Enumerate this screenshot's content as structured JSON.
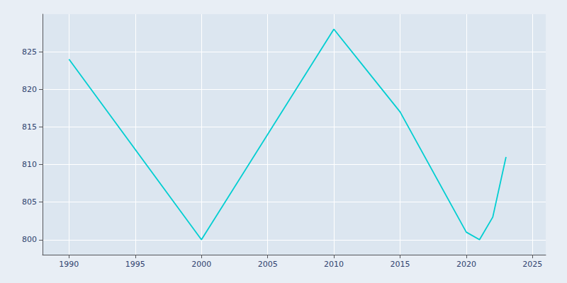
{
  "chart_data": {
    "type": "line",
    "x": [
      1990,
      2000,
      2010,
      2015,
      2020,
      2021,
      2022,
      2023
    ],
    "values": [
      824,
      800,
      828,
      817,
      801,
      800,
      803,
      811
    ],
    "color": "#00CED1",
    "xlim": [
      1988,
      2026
    ],
    "ylim": [
      798,
      830
    ],
    "xticks": [
      1990,
      1995,
      2000,
      2005,
      2010,
      2015,
      2020,
      2025
    ],
    "yticks": [
      800,
      805,
      810,
      815,
      820,
      825
    ],
    "grid": true
  }
}
